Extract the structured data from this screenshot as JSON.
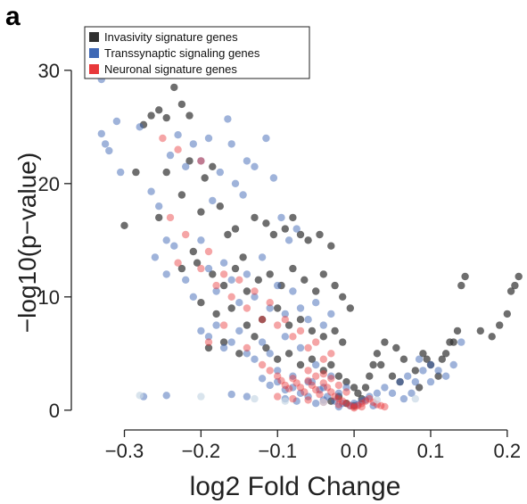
{
  "figure": {
    "panel_label": "a"
  },
  "chart_data": {
    "type": "scatter",
    "title": "",
    "xlabel": "log2 Fold Change",
    "ylabel": "−log10(p−value)",
    "xlim": [
      -0.36,
      0.22
    ],
    "ylim": [
      -0.8,
      34
    ],
    "x_ticks": [
      -0.3,
      -0.2,
      -0.1,
      0.0,
      0.1,
      0.2
    ],
    "x_tick_labels": [
      "−0.3",
      "−0.2",
      "−0.1",
      "0.0",
      "0.1",
      "0.2"
    ],
    "y_ticks": [
      0,
      10,
      20,
      30
    ],
    "y_tick_labels": [
      "0",
      "10",
      "20",
      "30"
    ],
    "grid": false,
    "legend_position": "top-left",
    "series": [
      {
        "name": "Invasivity signature genes",
        "color": "#303030",
        "opacity": 0.7,
        "points": [
          [
            -0.345,
            30.3
          ],
          [
            -0.33,
            30.5
          ],
          [
            -0.325,
            29.8
          ],
          [
            -0.3,
            16.3
          ],
          [
            -0.285,
            21.0
          ],
          [
            -0.275,
            25.2
          ],
          [
            -0.265,
            26.0
          ],
          [
            -0.255,
            26.5
          ],
          [
            -0.245,
            25.8
          ],
          [
            -0.235,
            28.5
          ],
          [
            -0.225,
            27.0
          ],
          [
            -0.215,
            26.0
          ],
          [
            -0.19,
            29.8
          ],
          [
            -0.255,
            17.0
          ],
          [
            -0.245,
            21.0
          ],
          [
            -0.225,
            19.0
          ],
          [
            -0.215,
            22.0
          ],
          [
            -0.195,
            20.5
          ],
          [
            -0.185,
            21.5
          ],
          [
            -0.2,
            17.5
          ],
          [
            -0.21,
            14.0
          ],
          [
            -0.175,
            18.0
          ],
          [
            -0.165,
            15.5
          ],
          [
            -0.155,
            16.0
          ],
          [
            -0.145,
            13.5
          ],
          [
            -0.13,
            17.0
          ],
          [
            -0.115,
            16.5
          ],
          [
            -0.105,
            15.5
          ],
          [
            -0.09,
            16.0
          ],
          [
            -0.08,
            17.0
          ],
          [
            -0.07,
            15.5
          ],
          [
            -0.06,
            15.0
          ],
          [
            -0.045,
            15.5
          ],
          [
            -0.03,
            14.5
          ],
          [
            -0.225,
            12.5
          ],
          [
            -0.205,
            13.0
          ],
          [
            -0.185,
            12.0
          ],
          [
            -0.17,
            11.0
          ],
          [
            -0.155,
            12.5
          ],
          [
            -0.14,
            10.5
          ],
          [
            -0.125,
            11.5
          ],
          [
            -0.11,
            12.0
          ],
          [
            -0.095,
            11.0
          ],
          [
            -0.08,
            12.5
          ],
          [
            -0.065,
            11.5
          ],
          [
            -0.05,
            10.5
          ],
          [
            -0.04,
            12.0
          ],
          [
            -0.025,
            11.0
          ],
          [
            -0.015,
            10.0
          ],
          [
            -0.005,
            9.0
          ],
          [
            -0.2,
            9.5
          ],
          [
            -0.18,
            8.5
          ],
          [
            -0.16,
            9.0
          ],
          [
            -0.14,
            7.5
          ],
          [
            -0.12,
            8.0
          ],
          [
            -0.1,
            9.0
          ],
          [
            -0.085,
            7.5
          ],
          [
            -0.07,
            8.0
          ],
          [
            -0.055,
            7.0
          ],
          [
            -0.04,
            6.5
          ],
          [
            -0.025,
            7.0
          ],
          [
            -0.015,
            6.0
          ],
          [
            -0.19,
            5.5
          ],
          [
            -0.17,
            6.0
          ],
          [
            -0.15,
            5.0
          ],
          [
            -0.13,
            6.5
          ],
          [
            -0.115,
            5.5
          ],
          [
            -0.1,
            4.5
          ],
          [
            -0.085,
            5.0
          ],
          [
            -0.07,
            4.0
          ],
          [
            -0.055,
            4.5
          ],
          [
            -0.04,
            3.5
          ],
          [
            -0.03,
            4.0
          ],
          [
            -0.02,
            3.0
          ],
          [
            -0.01,
            2.5
          ],
          [
            0.0,
            2.0
          ],
          [
            0.005,
            1.5
          ],
          [
            0.01,
            1.0
          ],
          [
            0.015,
            2.0
          ],
          [
            0.02,
            3.0
          ],
          [
            0.025,
            4.0
          ],
          [
            0.03,
            5.0
          ],
          [
            0.035,
            4.0
          ],
          [
            0.04,
            6.0
          ],
          [
            0.05,
            3.0
          ],
          [
            0.055,
            5.5
          ],
          [
            0.06,
            2.5
          ],
          [
            0.065,
            4.5
          ],
          [
            0.08,
            3.5
          ],
          [
            0.085,
            2.0
          ],
          [
            0.09,
            5.0
          ],
          [
            0.095,
            4.5
          ],
          [
            0.1,
            4.0
          ],
          [
            0.11,
            3.0
          ],
          [
            0.115,
            4.5
          ],
          [
            0.12,
            5.0
          ],
          [
            0.125,
            6.0
          ],
          [
            0.13,
            6.0
          ],
          [
            0.135,
            7.0
          ],
          [
            0.14,
            11.0
          ],
          [
            0.145,
            11.8
          ],
          [
            0.165,
            7.0
          ],
          [
            0.18,
            6.5
          ],
          [
            0.19,
            7.5
          ],
          [
            0.2,
            8.5
          ],
          [
            0.205,
            10.5
          ],
          [
            0.21,
            11.0
          ],
          [
            0.215,
            11.8
          ],
          [
            -0.03,
            0.8
          ],
          [
            -0.02,
            1.2
          ],
          [
            -0.01,
            0.6
          ],
          [
            0.0,
            0.4
          ]
        ]
      },
      {
        "name": "Transsynaptic signaling genes",
        "color": "#3f68b5",
        "opacity": 0.5,
        "points": [
          [
            -0.335,
            31.7
          ],
          [
            -0.33,
            29.2
          ],
          [
            -0.31,
            25.5
          ],
          [
            -0.33,
            24.4
          ],
          [
            -0.325,
            23.5
          ],
          [
            -0.32,
            22.9
          ],
          [
            -0.305,
            21.0
          ],
          [
            -0.285,
            32.2
          ],
          [
            -0.285,
            31.8
          ],
          [
            -0.28,
            25.0
          ],
          [
            -0.265,
            19.3
          ],
          [
            -0.255,
            18.0
          ],
          [
            -0.245,
            15.0
          ],
          [
            -0.24,
            22.5
          ],
          [
            -0.23,
            24.3
          ],
          [
            -0.22,
            21.5
          ],
          [
            -0.215,
            32.9
          ],
          [
            -0.21,
            23.5
          ],
          [
            -0.2,
            22.0
          ],
          [
            -0.19,
            24.0
          ],
          [
            -0.185,
            18.5
          ],
          [
            -0.175,
            21.0
          ],
          [
            -0.165,
            25.7
          ],
          [
            -0.16,
            23.5
          ],
          [
            -0.155,
            20.0
          ],
          [
            -0.145,
            19.0
          ],
          [
            -0.14,
            22.0
          ],
          [
            -0.13,
            21.5
          ],
          [
            -0.115,
            24.0
          ],
          [
            -0.105,
            20.5
          ],
          [
            -0.095,
            17.0
          ],
          [
            -0.085,
            15.0
          ],
          [
            -0.075,
            16.0
          ],
          [
            -0.26,
            13.5
          ],
          [
            -0.245,
            12.0
          ],
          [
            -0.235,
            14.5
          ],
          [
            -0.22,
            11.5
          ],
          [
            -0.21,
            10.0
          ],
          [
            -0.2,
            15.0
          ],
          [
            -0.19,
            12.5
          ],
          [
            -0.18,
            10.5
          ],
          [
            -0.17,
            13.0
          ],
          [
            -0.16,
            11.5
          ],
          [
            -0.15,
            9.5
          ],
          [
            -0.14,
            12.0
          ],
          [
            -0.13,
            10.0
          ],
          [
            -0.12,
            13.5
          ],
          [
            -0.11,
            9.0
          ],
          [
            -0.1,
            11.0
          ],
          [
            -0.09,
            8.5
          ],
          [
            -0.08,
            10.5
          ],
          [
            -0.07,
            9.0
          ],
          [
            -0.06,
            8.0
          ],
          [
            -0.05,
            9.5
          ],
          [
            -0.04,
            7.5
          ],
          [
            -0.03,
            8.5
          ],
          [
            -0.2,
            7.0
          ],
          [
            -0.19,
            6.5
          ],
          [
            -0.18,
            7.5
          ],
          [
            -0.17,
            5.5
          ],
          [
            -0.16,
            6.0
          ],
          [
            -0.15,
            7.0
          ],
          [
            -0.14,
            5.0
          ],
          [
            -0.13,
            4.5
          ],
          [
            -0.12,
            6.0
          ],
          [
            -0.11,
            5.0
          ],
          [
            -0.1,
            3.5
          ],
          [
            -0.09,
            6.5
          ],
          [
            -0.08,
            3.0
          ],
          [
            -0.07,
            5.5
          ],
          [
            -0.06,
            2.5
          ],
          [
            -0.05,
            4.0
          ],
          [
            -0.04,
            2.0
          ],
          [
            -0.03,
            3.0
          ],
          [
            -0.02,
            1.5
          ],
          [
            -0.01,
            2.0
          ],
          [
            -0.12,
            2.8
          ],
          [
            -0.11,
            2.2
          ],
          [
            -0.1,
            2.5
          ],
          [
            -0.09,
            1.8
          ],
          [
            -0.08,
            2.0
          ],
          [
            -0.07,
            1.5
          ],
          [
            -0.06,
            1.2
          ],
          [
            -0.055,
            2.5
          ],
          [
            -0.045,
            1.8
          ],
          [
            -0.035,
            1.2
          ],
          [
            -0.025,
            0.8
          ],
          [
            -0.015,
            0.6
          ],
          [
            -0.005,
            0.4
          ],
          [
            0.005,
            0.5
          ],
          [
            0.01,
            0.8
          ],
          [
            0.02,
            1.2
          ],
          [
            0.03,
            1.5
          ],
          [
            0.04,
            2.0
          ],
          [
            0.05,
            1.5
          ],
          [
            0.06,
            2.5
          ],
          [
            0.07,
            3.0
          ],
          [
            0.08,
            2.5
          ],
          [
            0.09,
            3.5
          ],
          [
            0.1,
            2.5
          ],
          [
            0.11,
            3.5
          ],
          [
            0.12,
            3.0
          ],
          [
            0.13,
            4.0
          ],
          [
            0.14,
            6.0
          ],
          [
            0.1,
            4.0
          ],
          [
            0.085,
            4.5
          ],
          [
            0.075,
            1.5
          ],
          [
            0.065,
            1.0
          ],
          [
            -0.275,
            1.2
          ],
          [
            -0.245,
            1.3
          ],
          [
            -0.14,
            1.2
          ],
          [
            -0.16,
            1.4
          ],
          [
            -0.09,
            1.0
          ],
          [
            -0.075,
            0.8
          ],
          [
            -0.05,
            0.6
          ],
          [
            -0.04,
            0.9
          ],
          [
            -0.02,
            0.3
          ],
          [
            0.0,
            0.6
          ],
          [
            0.015,
            0.9
          ],
          [
            0.025,
            0.4
          ]
        ]
      },
      {
        "name": "Neuronal signature genes",
        "color": "#e8383a",
        "opacity": 0.45,
        "points": [
          [
            -0.25,
            24.0
          ],
          [
            -0.23,
            23.0
          ],
          [
            -0.2,
            22.0
          ],
          [
            -0.24,
            17.0
          ],
          [
            -0.22,
            15.5
          ],
          [
            -0.23,
            13.0
          ],
          [
            -0.19,
            14.0
          ],
          [
            -0.17,
            12.0
          ],
          [
            -0.16,
            10.0
          ],
          [
            -0.15,
            11.5
          ],
          [
            -0.14,
            9.0
          ],
          [
            -0.13,
            10.5
          ],
          [
            -0.12,
            8.0
          ],
          [
            -0.11,
            9.5
          ],
          [
            -0.1,
            7.5
          ],
          [
            -0.09,
            8.0
          ],
          [
            -0.08,
            6.5
          ],
          [
            -0.07,
            7.0
          ],
          [
            -0.06,
            5.5
          ],
          [
            -0.05,
            6.0
          ],
          [
            -0.04,
            4.5
          ],
          [
            -0.03,
            5.0
          ],
          [
            -0.2,
            12.5
          ],
          [
            -0.18,
            11.0
          ],
          [
            -0.17,
            7.5
          ],
          [
            -0.19,
            6.0
          ],
          [
            -0.14,
            5.5
          ],
          [
            -0.12,
            4.0
          ],
          [
            -0.11,
            3.5
          ],
          [
            -0.1,
            3.0
          ],
          [
            -0.095,
            2.6
          ],
          [
            -0.09,
            2.2
          ],
          [
            -0.085,
            1.9
          ],
          [
            -0.08,
            2.8
          ],
          [
            -0.075,
            2.4
          ],
          [
            -0.07,
            2.0
          ],
          [
            -0.065,
            1.6
          ],
          [
            -0.06,
            2.6
          ],
          [
            -0.055,
            2.2
          ],
          [
            -0.05,
            1.8
          ],
          [
            -0.045,
            1.4
          ],
          [
            -0.04,
            2.4
          ],
          [
            -0.035,
            2.0
          ],
          [
            -0.03,
            1.6
          ],
          [
            -0.025,
            1.2
          ],
          [
            -0.02,
            1.0
          ],
          [
            -0.015,
            0.8
          ],
          [
            -0.01,
            0.6
          ],
          [
            -0.005,
            0.4
          ],
          [
            0.0,
            0.3
          ],
          [
            0.005,
            0.4
          ],
          [
            0.01,
            0.6
          ],
          [
            0.015,
            0.8
          ],
          [
            0.02,
            1.0
          ],
          [
            0.025,
            0.7
          ],
          [
            0.03,
            0.5
          ],
          [
            0.035,
            0.4
          ],
          [
            0.04,
            0.3
          ],
          [
            -0.06,
            3.5
          ],
          [
            -0.05,
            3.0
          ],
          [
            -0.04,
            3.2
          ],
          [
            -0.03,
            2.8
          ],
          [
            -0.02,
            2.2
          ],
          [
            -0.01,
            1.6
          ],
          [
            -0.1,
            1.2
          ],
          [
            -0.08,
            1.0
          ],
          [
            -0.06,
            0.9
          ],
          [
            -0.04,
            0.7
          ],
          [
            -0.02,
            0.5
          ],
          [
            0.0,
            0.2
          ],
          [
            0.01,
            0.3
          ]
        ]
      },
      {
        "name": "",
        "color": "#c9d9e6",
        "opacity": 0.7,
        "points": [
          [
            -0.28,
            1.3
          ],
          [
            -0.2,
            1.2
          ],
          [
            -0.13,
            1.0
          ],
          [
            -0.09,
            0.8
          ],
          [
            -0.04,
            0.7
          ],
          [
            0.03,
            0.9
          ],
          [
            0.08,
            1.0
          ]
        ]
      }
    ]
  }
}
